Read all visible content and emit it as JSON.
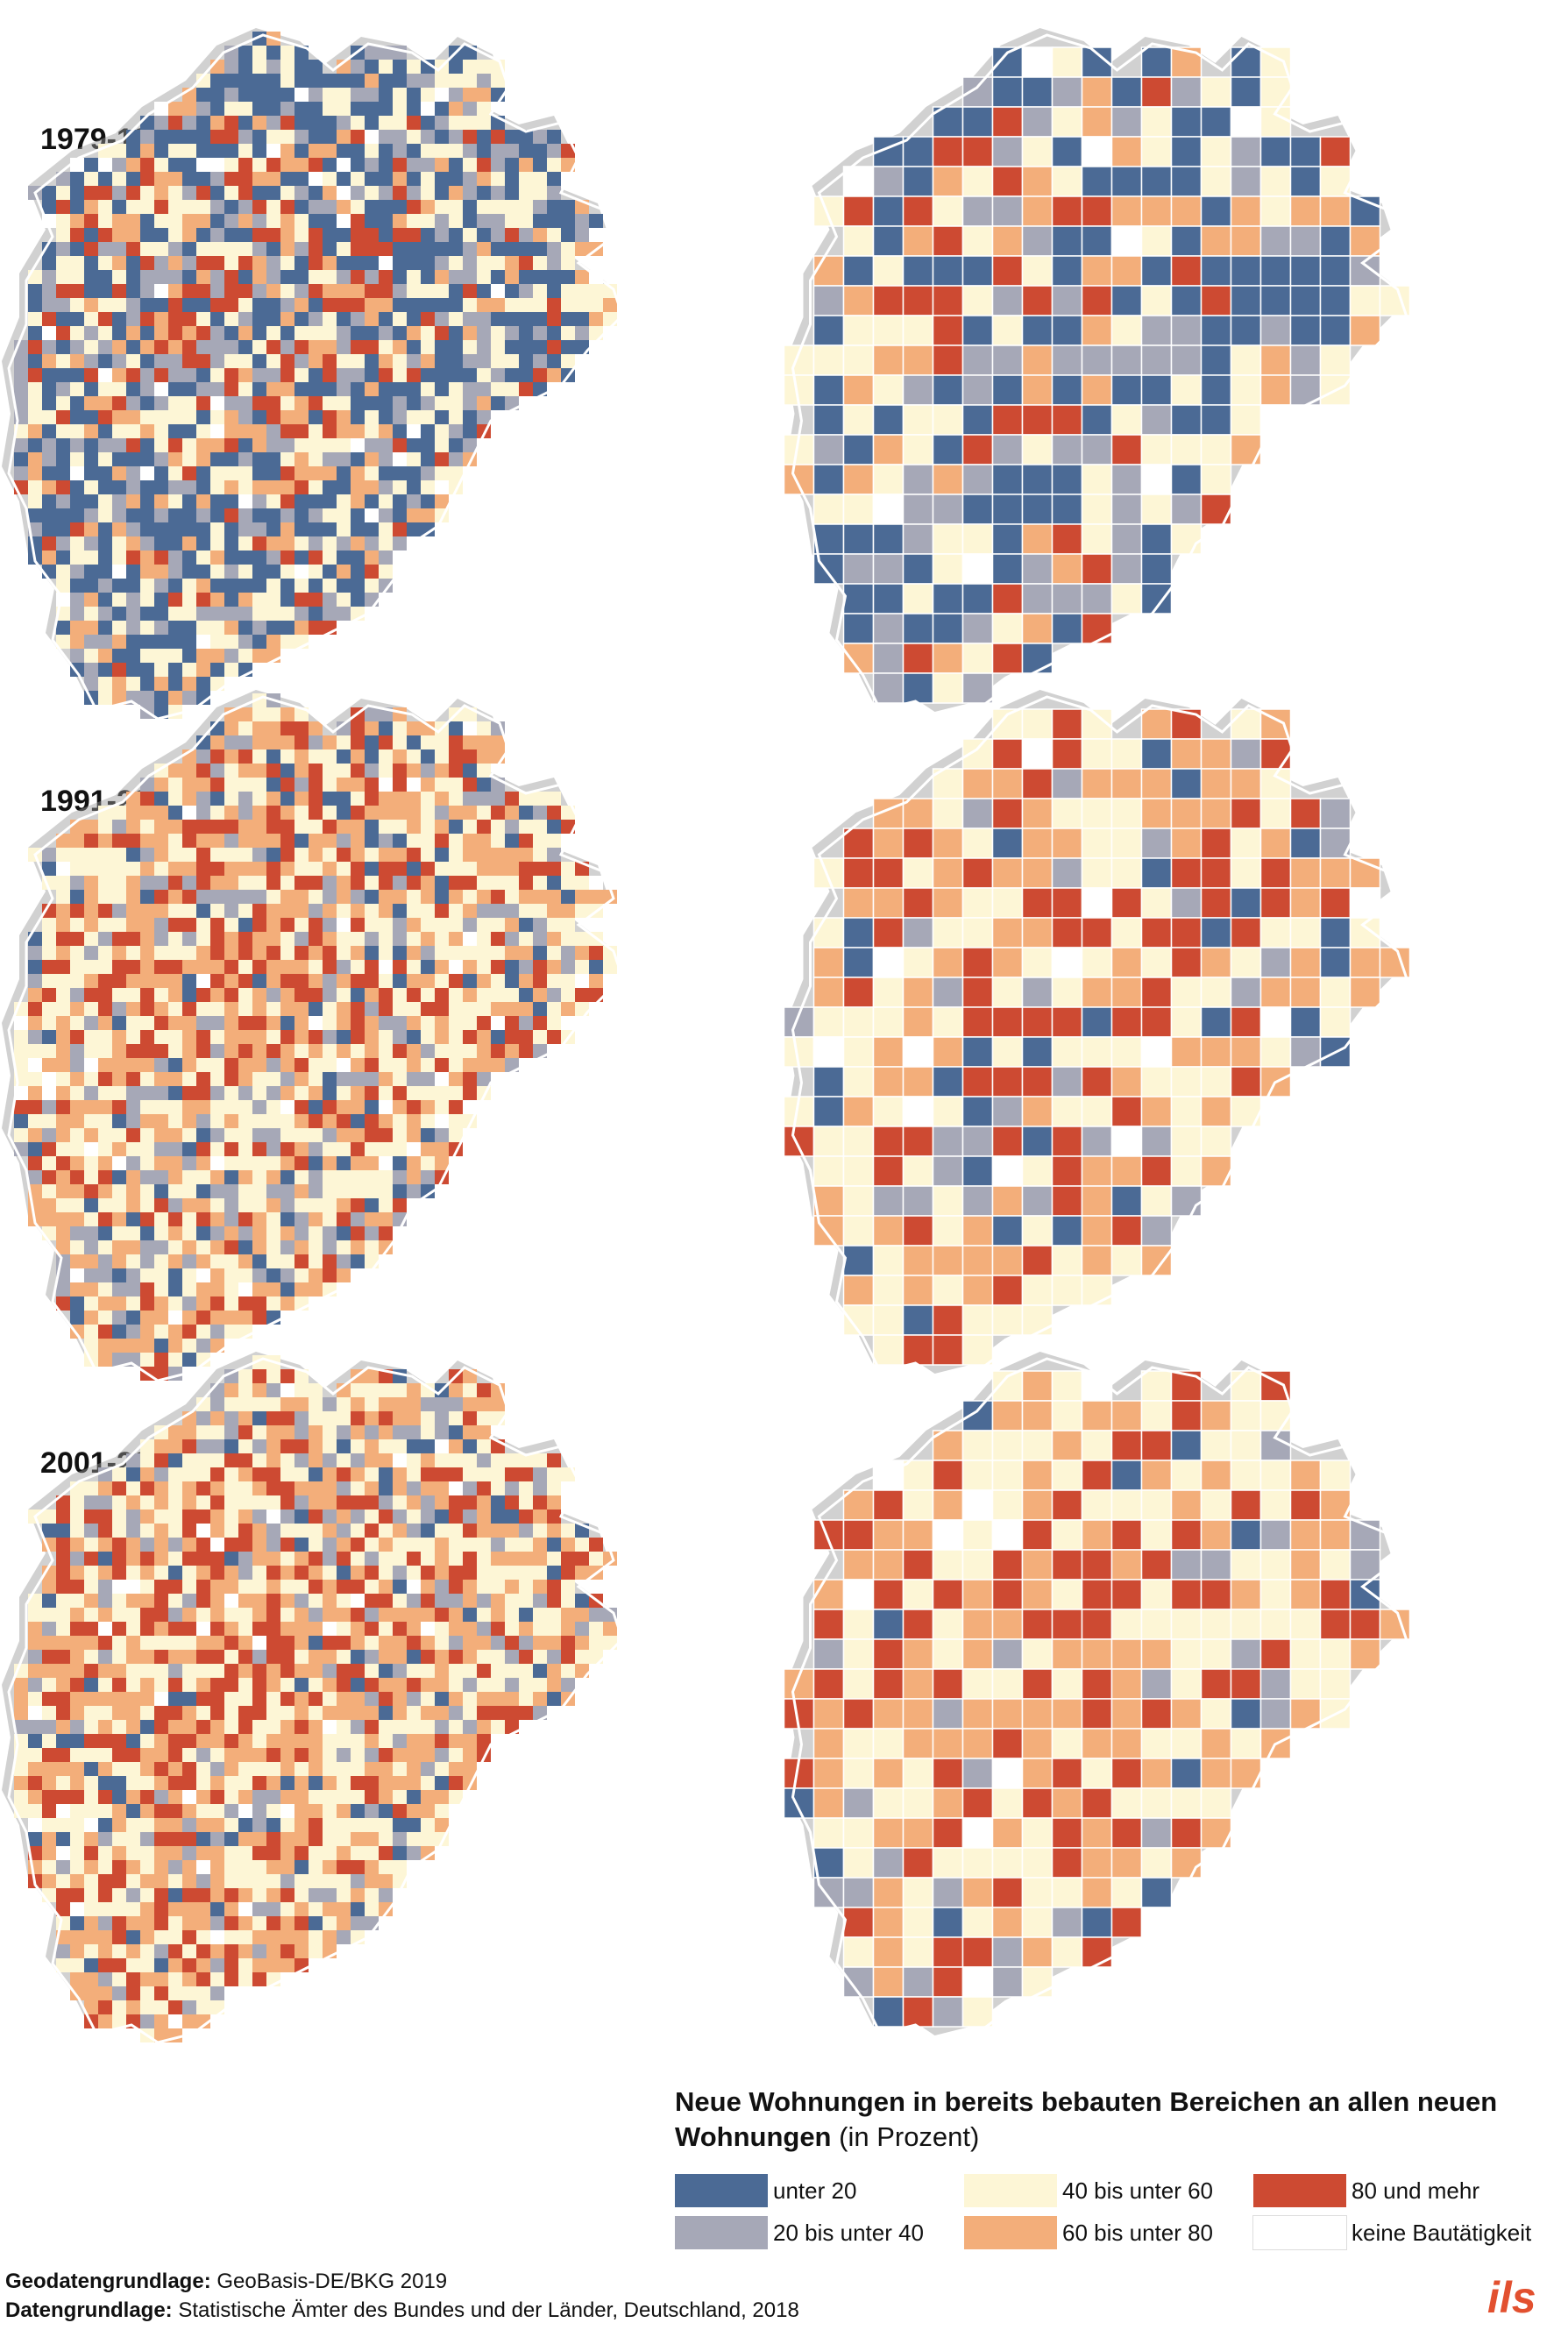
{
  "periods": [
    {
      "label": "1979-1990"
    },
    {
      "label": "1991-2000"
    },
    {
      "label": "2001-2011"
    }
  ],
  "legend": {
    "title_bold": "Neue Wohnungen in bereits bebauten Bereichen an allen neuen Wohnungen",
    "title_unit": "(in Prozent)",
    "classes": [
      {
        "label": "unter 20",
        "color": "#4b6a95"
      },
      {
        "label": "20 bis unter 40",
        "color": "#a6a8b7"
      },
      {
        "label": "40 bis unter 60",
        "color": "#fdf6d6"
      },
      {
        "label": "60 bis unter 80",
        "color": "#f3ae7a"
      },
      {
        "label": "80 und mehr",
        "color": "#cd4a32"
      },
      {
        "label": "keine Bautätigkeit",
        "color": "#ffffff"
      }
    ]
  },
  "sources": {
    "geo_label": "Geodatengrundlage:",
    "geo_value": "GeoBasis-DE/BKG 2019",
    "data_label": "Datengrundlage:",
    "data_value": "Statistische Ämter des Bundes und der Länder, Deutschland, 2018"
  },
  "logo": {
    "text": "ils",
    "color": "#e2502f"
  }
}
